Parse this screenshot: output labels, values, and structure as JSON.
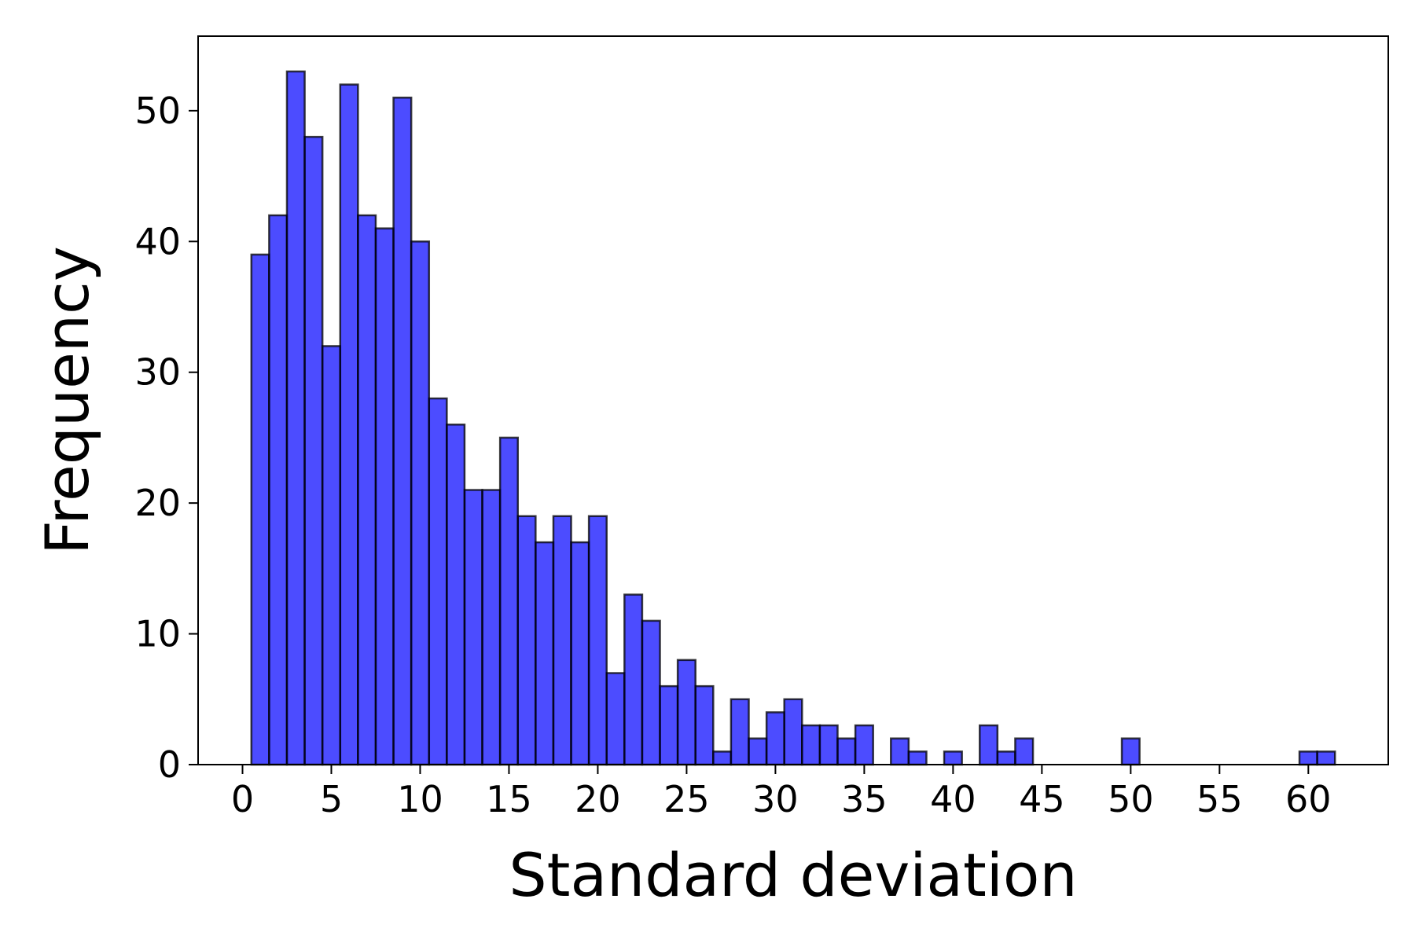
{
  "chart_data": {
    "type": "bar",
    "subtype": "histogram",
    "title": "",
    "xlabel": "Standard deviation",
    "ylabel": "Frequency",
    "xlim": [
      -2.5,
      64.5
    ],
    "ylim": [
      0,
      55.7
    ],
    "xticks": [
      0,
      5,
      10,
      15,
      20,
      25,
      30,
      35,
      40,
      45,
      50,
      55,
      60
    ],
    "yticks": [
      0,
      10,
      20,
      30,
      40,
      50
    ],
    "grid": false,
    "bin_width": 1,
    "bin_starts": [
      0.5,
      1.5,
      2.5,
      3.5,
      4.5,
      5.5,
      6.5,
      7.5,
      8.5,
      9.5,
      10.5,
      11.5,
      12.5,
      13.5,
      14.5,
      15.5,
      16.5,
      17.5,
      18.5,
      19.5,
      20.5,
      21.5,
      22.5,
      23.5,
      24.5,
      25.5,
      26.5,
      27.5,
      28.5,
      29.5,
      30.5,
      31.5,
      32.5,
      33.5,
      34.5,
      35.5,
      36.5,
      37.5,
      38.5,
      39.5,
      40.5,
      41.5,
      42.5,
      43.5,
      44.5,
      45.5,
      46.5,
      47.5,
      48.5,
      49.5,
      50.5,
      51.5,
      52.5,
      53.5,
      54.5,
      55.5,
      56.5,
      57.5,
      58.5,
      59.5,
      60.5
    ],
    "values": [
      39,
      42,
      53,
      48,
      32,
      52,
      42,
      41,
      51,
      40,
      28,
      26,
      21,
      21,
      25,
      19,
      17,
      19,
      17,
      19,
      7,
      13,
      11,
      6,
      8,
      6,
      1,
      5,
      2,
      4,
      5,
      3,
      3,
      2,
      3,
      0,
      2,
      1,
      0,
      1,
      0,
      3,
      1,
      2,
      0,
      0,
      0,
      0,
      0,
      2,
      0,
      0,
      0,
      0,
      0,
      0,
      0,
      0,
      0,
      1,
      1
    ],
    "colors": {
      "bar_fill": "#0000ff",
      "bar_fill_opacity": 0.7,
      "bar_edge": "#000000"
    }
  }
}
